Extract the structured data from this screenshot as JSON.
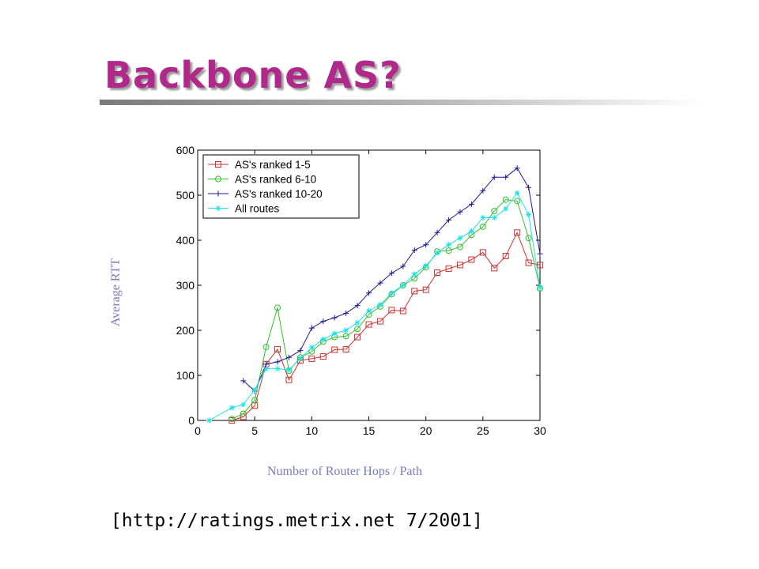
{
  "slide": {
    "title": "Backbone AS?",
    "source": "[http://ratings.metrix.net 7/2001]"
  },
  "chart_data": {
    "type": "line",
    "xlabel": "Number of Router Hops / Path",
    "ylabel": "Average RTT",
    "xlim": [
      0,
      30
    ],
    "ylim": [
      0,
      600
    ],
    "xticks": [
      0,
      5,
      10,
      15,
      20,
      25,
      30
    ],
    "yticks": [
      0,
      100,
      200,
      300,
      400,
      500,
      600
    ],
    "grid": false,
    "legend_position": "top-left",
    "series": [
      {
        "name": "AS's ranked 1-5",
        "color": "#d03030",
        "marker": "square",
        "x": [
          3,
          4,
          5,
          6,
          7,
          8,
          9,
          10,
          11,
          12,
          13,
          14,
          15,
          16,
          17,
          18,
          19,
          20,
          21,
          22,
          23,
          24,
          25,
          26,
          27,
          28,
          29,
          30
        ],
        "y": [
          0,
          8,
          33,
          125,
          158,
          90,
          133,
          137,
          142,
          157,
          158,
          185,
          213,
          220,
          245,
          243,
          287,
          290,
          328,
          337,
          345,
          357,
          373,
          338,
          365,
          417,
          350,
          345
        ]
      },
      {
        "name": "AS's ranked 6-10",
        "color": "#30c030",
        "marker": "circle",
        "x": [
          3,
          4,
          5,
          6,
          7,
          8,
          9,
          10,
          11,
          12,
          13,
          14,
          15,
          16,
          17,
          18,
          19,
          20,
          21,
          22,
          23,
          24,
          25,
          26,
          27,
          28,
          29,
          30
        ],
        "y": [
          3,
          15,
          45,
          163,
          250,
          110,
          140,
          153,
          175,
          185,
          187,
          203,
          235,
          253,
          280,
          300,
          315,
          340,
          375,
          377,
          385,
          412,
          430,
          465,
          490,
          487,
          405,
          293
        ]
      },
      {
        "name": "AS's ranked 10-20",
        "color": "#1a1a9a",
        "marker": "plus",
        "x": [
          4,
          5,
          6,
          7,
          8,
          9,
          10,
          11,
          12,
          13,
          14,
          15,
          16,
          17,
          18,
          19,
          20,
          21,
          22,
          23,
          24,
          25,
          26,
          27,
          28,
          29,
          30
        ],
        "y": [
          88,
          65,
          125,
          130,
          140,
          155,
          205,
          220,
          228,
          238,
          255,
          283,
          305,
          327,
          342,
          378,
          390,
          417,
          445,
          463,
          480,
          510,
          540,
          540,
          560,
          517,
          370
        ]
      },
      {
        "name": "All routes",
        "color": "#20e0e8",
        "marker": "star",
        "x": [
          1,
          3,
          4,
          5,
          6,
          7,
          8,
          9,
          10,
          11,
          12,
          13,
          14,
          15,
          16,
          17,
          18,
          19,
          20,
          21,
          22,
          23,
          24,
          25,
          26,
          27,
          28,
          29,
          30
        ],
        "y": [
          0,
          28,
          35,
          68,
          115,
          115,
          112,
          138,
          162,
          180,
          193,
          200,
          217,
          243,
          257,
          283,
          300,
          325,
          343,
          372,
          390,
          405,
          420,
          450,
          450,
          470,
          505,
          457,
          295
        ]
      }
    ]
  }
}
